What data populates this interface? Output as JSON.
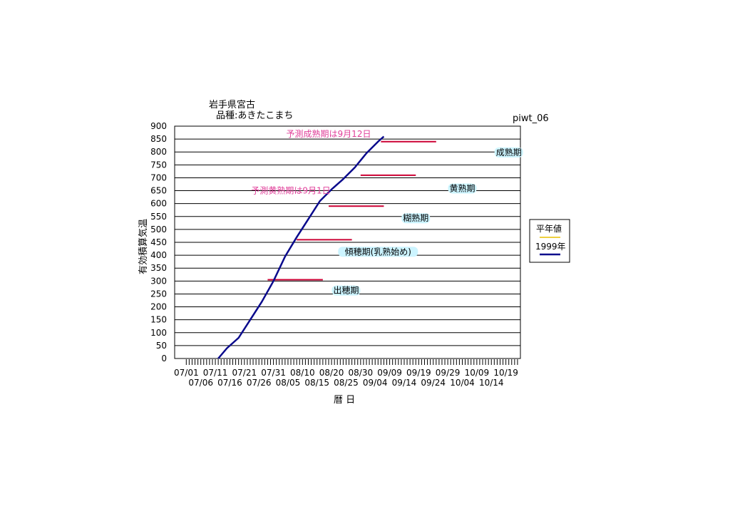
{
  "header": {
    "location": "岩手県宮古",
    "variety": "品種:あきたこまち",
    "code": "piwt_06"
  },
  "chart_data": {
    "type": "line",
    "title": "岩手県宮古",
    "subtitle": "品種:あきたこまち",
    "xlabel": "暦 日",
    "ylabel": "有効積算気温",
    "ylim": [
      0,
      900
    ],
    "yticks": [
      0,
      50,
      100,
      150,
      200,
      250,
      300,
      350,
      400,
      450,
      500,
      550,
      600,
      650,
      700,
      750,
      800,
      850,
      900
    ],
    "xrange": [
      "07/01",
      "10/23"
    ],
    "xtick_labels_top": [
      "07/01",
      "07/11",
      "07/21",
      "07/31",
      "08/10",
      "08/20",
      "08/30",
      "09/09",
      "09/19",
      "09/29",
      "10/09",
      "10/19"
    ],
    "xtick_labels_bottom": [
      "07/06",
      "07/16",
      "07/26",
      "08/05",
      "08/15",
      "08/25",
      "09/04",
      "09/14",
      "09/24",
      "10/04",
      "10/14"
    ],
    "grid": true,
    "legend": {
      "position": "right",
      "entries": [
        {
          "label": "平年値",
          "color": "#e8c000"
        },
        {
          "label": "1999年",
          "color": "#0a0a8c"
        }
      ]
    },
    "series": [
      {
        "name": "1999年",
        "color": "#0a0a8c",
        "points": [
          [
            "07/12",
            0
          ],
          [
            "07/15",
            40
          ],
          [
            "07/19",
            80
          ],
          [
            "07/23",
            150
          ],
          [
            "07/27",
            220
          ],
          [
            "07/31",
            300
          ],
          [
            "08/04",
            395
          ],
          [
            "08/08",
            470
          ],
          [
            "08/12",
            540
          ],
          [
            "08/16",
            610
          ],
          [
            "08/20",
            655
          ],
          [
            "08/24",
            695
          ],
          [
            "08/28",
            740
          ],
          [
            "09/01",
            795
          ],
          [
            "09/05",
            840
          ],
          [
            "09/07",
            860
          ]
        ]
      }
    ],
    "stage_lines": [
      {
        "label": "出穂期",
        "y": 305,
        "x_start": "07/29",
        "x_end": "08/17",
        "label_at": [
          "08/25",
          255
        ]
      },
      {
        "label": "傾穂期(乳熟始め)",
        "y": 460,
        "x_start": "08/08",
        "x_end": "08/27",
        "label_at": [
          "09/05",
          405
        ]
      },
      {
        "label": "糊熟期",
        "y": 590,
        "x_start": "08/19",
        "x_end": "09/07",
        "label_at": [
          "09/18",
          535
        ]
      },
      {
        "label": "黄熟期",
        "y": 710,
        "x_start": "08/30",
        "x_end": "09/18",
        "label_at": [
          "10/04",
          650
        ]
      },
      {
        "label": "成熟期",
        "y": 840,
        "x_start": "09/06",
        "x_end": "09/25",
        "label_at": [
          "10/20",
          790
        ]
      }
    ],
    "annotations": [
      {
        "text": "予測成熟期は9月12日",
        "at": [
          "08/19",
          870
        ],
        "color": "#e0409a"
      },
      {
        "text": "予測黄熟期は9月1日",
        "at": [
          "08/06",
          650
        ],
        "color": "#e0409a"
      }
    ]
  }
}
